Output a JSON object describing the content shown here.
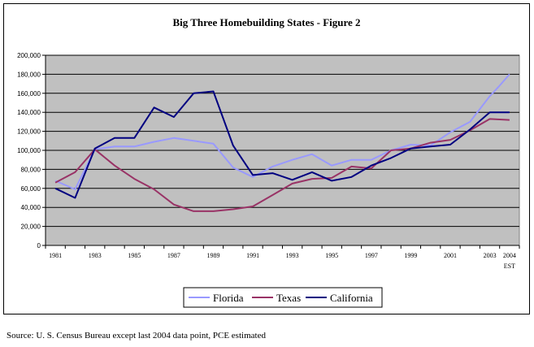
{
  "chart_data": {
    "type": "line",
    "title": "Big Three Homebuilding States - Figure 2",
    "xlabel": "",
    "ylabel": "",
    "x": [
      1981,
      1982,
      1983,
      1984,
      1985,
      1986,
      1987,
      1988,
      1989,
      1990,
      1991,
      1992,
      1993,
      1994,
      1995,
      1996,
      1997,
      1998,
      1999,
      2000,
      2001,
      2002,
      2003,
      2004
    ],
    "x_tick_labels": [
      "1981",
      "1983",
      "1985",
      "1987",
      "1989",
      "1991",
      "1993",
      "1995",
      "1997",
      "1999",
      "2001",
      "2003",
      "2004"
    ],
    "x_extra_label": "EST",
    "y_tick_labels": [
      "0",
      "20,000",
      "40,000",
      "60,000",
      "80,000",
      "100,000",
      "120,000",
      "140,000",
      "160,000",
      "180,000",
      "200,000"
    ],
    "ylim": [
      0,
      200000
    ],
    "grid": true,
    "legend_position": "bottom",
    "series": [
      {
        "name": "Florida",
        "color": "#9999ff",
        "points": [
          [
            1981,
            68000
          ],
          [
            1982,
            59000
          ],
          [
            1983,
            101000
          ],
          [
            1984,
            104000
          ],
          [
            1985,
            104000
          ],
          [
            1986,
            109000
          ],
          [
            1987,
            113000
          ],
          [
            1988,
            110000
          ],
          [
            1989,
            107000
          ],
          [
            1990,
            82000
          ],
          [
            1991,
            72000
          ],
          [
            1992,
            83000
          ],
          [
            1993,
            90000
          ],
          [
            1994,
            96000
          ],
          [
            1995,
            84000
          ],
          [
            1996,
            90000
          ],
          [
            1997,
            90000
          ],
          [
            1998,
            100000
          ],
          [
            1999,
            106000
          ],
          [
            2000,
            105000
          ],
          [
            2001,
            119000
          ],
          [
            2002,
            130000
          ],
          [
            2003,
            157000
          ],
          [
            2003.5,
            168000
          ],
          [
            2004,
            180000
          ]
        ]
      },
      {
        "name": "Texas",
        "color": "#993366",
        "points": [
          [
            1981,
            66000
          ],
          [
            1982,
            77000
          ],
          [
            1983,
            101000
          ],
          [
            1984,
            84000
          ],
          [
            1985,
            70000
          ],
          [
            1986,
            59000
          ],
          [
            1987,
            43000
          ],
          [
            1988,
            36000
          ],
          [
            1989,
            36000
          ],
          [
            1990,
            38000
          ],
          [
            1991,
            41000
          ],
          [
            1992,
            53000
          ],
          [
            1993,
            65000
          ],
          [
            1994,
            70000
          ],
          [
            1995,
            71000
          ],
          [
            1996,
            83000
          ],
          [
            1997,
            81000
          ],
          [
            1998,
            100000
          ],
          [
            1999,
            102000
          ],
          [
            2000,
            108000
          ],
          [
            2001,
            111000
          ],
          [
            2002,
            121000
          ],
          [
            2003,
            133000
          ],
          [
            2004,
            132000
          ]
        ]
      },
      {
        "name": "California",
        "color": "#000080",
        "points": [
          [
            1981,
            60000
          ],
          [
            1982,
            50000
          ],
          [
            1983,
            102000
          ],
          [
            1984,
            113000
          ],
          [
            1985,
            113000
          ],
          [
            1986,
            145000
          ],
          [
            1987,
            135000
          ],
          [
            1988,
            160000
          ],
          [
            1989,
            162000
          ],
          [
            1990,
            105000
          ],
          [
            1991,
            74000
          ],
          [
            1992,
            76000
          ],
          [
            1993,
            69000
          ],
          [
            1994,
            77000
          ],
          [
            1995,
            68000
          ],
          [
            1996,
            72000
          ],
          [
            1997,
            84000
          ],
          [
            1998,
            92000
          ],
          [
            1999,
            102000
          ],
          [
            2000,
            104000
          ],
          [
            2001,
            106000
          ],
          [
            2002,
            122000
          ],
          [
            2003,
            140000
          ],
          [
            2004,
            140000
          ]
        ]
      }
    ]
  },
  "source_note": "Source:  U. S. Census Bureau except last 2004 data point, PCE estimated"
}
